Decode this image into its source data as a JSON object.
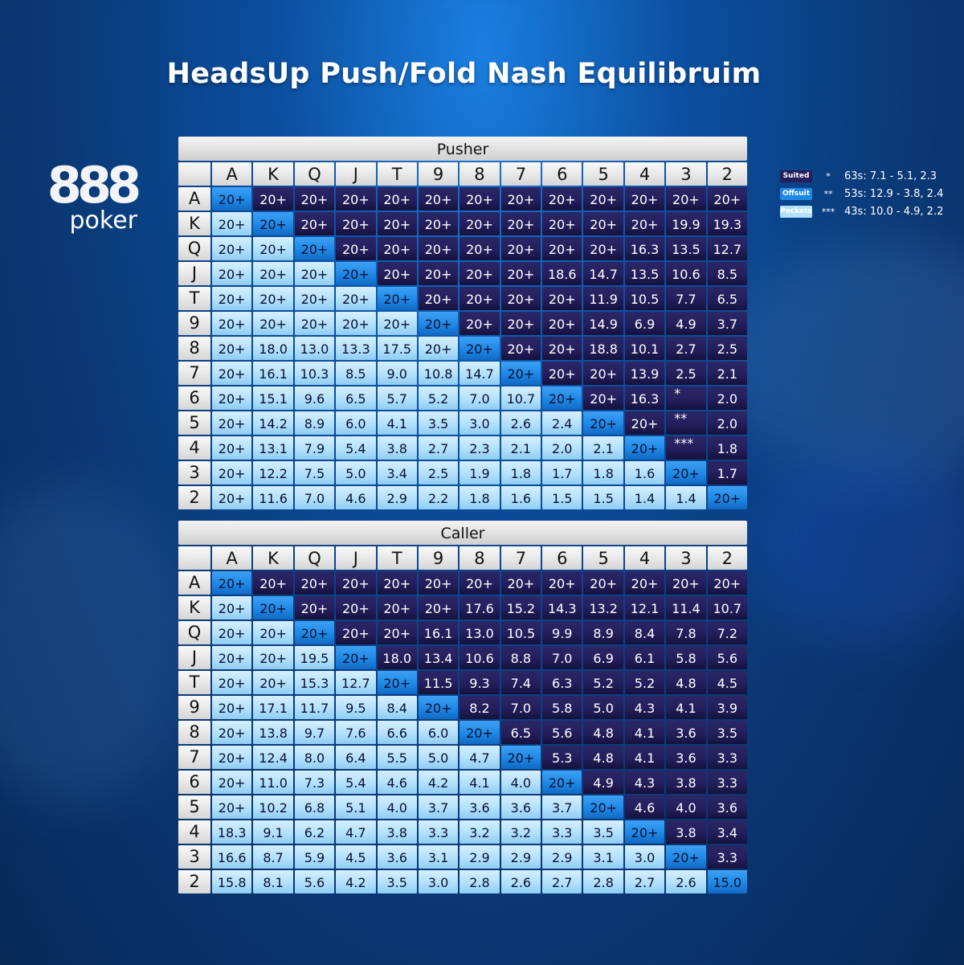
{
  "title": "HeadsUp Push/Fold Nash Equilibruim",
  "logo": {
    "number": "888",
    "word": "poker"
  },
  "colors": {
    "suited": "#241f5c",
    "offsuit": "#b3e0fb",
    "pockets": "#1e88e5"
  },
  "legend": {
    "chips": [
      {
        "label": "Suited",
        "color": "#241f5c"
      },
      {
        "label": "Offsuit",
        "color": "#1e88e5"
      },
      {
        "label": "Pockets",
        "color": "#b3e0fb"
      }
    ],
    "notes": [
      {
        "mark": "*",
        "text": "63s: 7.1 - 5.1, 2.3"
      },
      {
        "mark": "**",
        "text": "53s: 12.9 - 3.8, 2.4"
      },
      {
        "mark": "***",
        "text": "43s: 10.0 - 4.9, 2.2"
      }
    ]
  },
  "chart_data": [
    {
      "type": "table",
      "title": "Pusher",
      "columns": [
        "A",
        "K",
        "Q",
        "J",
        "T",
        "9",
        "8",
        "7",
        "6",
        "5",
        "4",
        "3",
        "2"
      ],
      "rows": [
        {
          "label": "A",
          "values": [
            "20+",
            "20+",
            "20+",
            "20+",
            "20+",
            "20+",
            "20+",
            "20+",
            "20+",
            "20+",
            "20+",
            "20+",
            "20+"
          ]
        },
        {
          "label": "K",
          "values": [
            "20+",
            "20+",
            "20+",
            "20+",
            "20+",
            "20+",
            "20+",
            "20+",
            "20+",
            "20+",
            "20+",
            "19.9",
            "19.3"
          ]
        },
        {
          "label": "Q",
          "values": [
            "20+",
            "20+",
            "20+",
            "20+",
            "20+",
            "20+",
            "20+",
            "20+",
            "20+",
            "20+",
            "16.3",
            "13.5",
            "12.7"
          ]
        },
        {
          "label": "J",
          "values": [
            "20+",
            "20+",
            "20+",
            "20+",
            "20+",
            "20+",
            "20+",
            "20+",
            "18.6",
            "14.7",
            "13.5",
            "10.6",
            "8.5"
          ]
        },
        {
          "label": "T",
          "values": [
            "20+",
            "20+",
            "20+",
            "20+",
            "20+",
            "20+",
            "20+",
            "20+",
            "20+",
            "11.9",
            "10.5",
            "7.7",
            "6.5"
          ]
        },
        {
          "label": "9",
          "values": [
            "20+",
            "20+",
            "20+",
            "20+",
            "20+",
            "20+",
            "20+",
            "20+",
            "20+",
            "14.9",
            "6.9",
            "4.9",
            "3.7"
          ]
        },
        {
          "label": "8",
          "values": [
            "20+",
            "18.0",
            "13.0",
            "13.3",
            "17.5",
            "20+",
            "20+",
            "20+",
            "20+",
            "18.8",
            "10.1",
            "2.7",
            "2.5"
          ]
        },
        {
          "label": "7",
          "values": [
            "20+",
            "16.1",
            "10.3",
            "8.5",
            "9.0",
            "10.8",
            "14.7",
            "20+",
            "20+",
            "20+",
            "13.9",
            "2.5",
            "2.1"
          ]
        },
        {
          "label": "6",
          "values": [
            "20+",
            "15.1",
            "9.6",
            "6.5",
            "5.7",
            "5.2",
            "7.0",
            "10.7",
            "20+",
            "20+",
            "16.3",
            "*",
            "2.0"
          ]
        },
        {
          "label": "5",
          "values": [
            "20+",
            "14.2",
            "8.9",
            "6.0",
            "4.1",
            "3.5",
            "3.0",
            "2.6",
            "2.4",
            "20+",
            "20+",
            "**",
            "2.0"
          ]
        },
        {
          "label": "4",
          "values": [
            "20+",
            "13.1",
            "7.9",
            "5.4",
            "3.8",
            "2.7",
            "2.3",
            "2.1",
            "2.0",
            "2.1",
            "20+",
            "***",
            "1.8"
          ]
        },
        {
          "label": "3",
          "values": [
            "20+",
            "12.2",
            "7.5",
            "5.0",
            "3.4",
            "2.5",
            "1.9",
            "1.8",
            "1.7",
            "1.8",
            "1.6",
            "20+",
            "1.7"
          ]
        },
        {
          "label": "2",
          "values": [
            "20+",
            "11.6",
            "7.0",
            "4.6",
            "2.9",
            "2.2",
            "1.8",
            "1.6",
            "1.5",
            "1.5",
            "1.4",
            "1.4",
            "20+"
          ]
        }
      ]
    },
    {
      "type": "table",
      "title": "Caller",
      "columns": [
        "A",
        "K",
        "Q",
        "J",
        "T",
        "9",
        "8",
        "7",
        "6",
        "5",
        "4",
        "3",
        "2"
      ],
      "rows": [
        {
          "label": "A",
          "values": [
            "20+",
            "20+",
            "20+",
            "20+",
            "20+",
            "20+",
            "20+",
            "20+",
            "20+",
            "20+",
            "20+",
            "20+",
            "20+"
          ]
        },
        {
          "label": "K",
          "values": [
            "20+",
            "20+",
            "20+",
            "20+",
            "20+",
            "20+",
            "17.6",
            "15.2",
            "14.3",
            "13.2",
            "12.1",
            "11.4",
            "10.7"
          ]
        },
        {
          "label": "Q",
          "values": [
            "20+",
            "20+",
            "20+",
            "20+",
            "20+",
            "16.1",
            "13.0",
            "10.5",
            "9.9",
            "8.9",
            "8.4",
            "7.8",
            "7.2"
          ]
        },
        {
          "label": "J",
          "values": [
            "20+",
            "20+",
            "19.5",
            "20+",
            "18.0",
            "13.4",
            "10.6",
            "8.8",
            "7.0",
            "6.9",
            "6.1",
            "5.8",
            "5.6"
          ]
        },
        {
          "label": "T",
          "values": [
            "20+",
            "20+",
            "15.3",
            "12.7",
            "20+",
            "11.5",
            "9.3",
            "7.4",
            "6.3",
            "5.2",
            "5.2",
            "4.8",
            "4.5"
          ]
        },
        {
          "label": "9",
          "values": [
            "20+",
            "17.1",
            "11.7",
            "9.5",
            "8.4",
            "20+",
            "8.2",
            "7.0",
            "5.8",
            "5.0",
            "4.3",
            "4.1",
            "3.9"
          ]
        },
        {
          "label": "8",
          "values": [
            "20+",
            "13.8",
            "9.7",
            "7.6",
            "6.6",
            "6.0",
            "20+",
            "6.5",
            "5.6",
            "4.8",
            "4.1",
            "3.6",
            "3.5"
          ]
        },
        {
          "label": "7",
          "values": [
            "20+",
            "12.4",
            "8.0",
            "6.4",
            "5.5",
            "5.0",
            "4.7",
            "20+",
            "5.3",
            "4.8",
            "4.1",
            "3.6",
            "3.3"
          ]
        },
        {
          "label": "6",
          "values": [
            "20+",
            "11.0",
            "7.3",
            "5.4",
            "4.6",
            "4.2",
            "4.1",
            "4.0",
            "20+",
            "4.9",
            "4.3",
            "3.8",
            "3.3"
          ]
        },
        {
          "label": "5",
          "values": [
            "20+",
            "10.2",
            "6.8",
            "5.1",
            "4.0",
            "3.7",
            "3.6",
            "3.6",
            "3.7",
            "20+",
            "4.6",
            "4.0",
            "3.6"
          ]
        },
        {
          "label": "4",
          "values": [
            "18.3",
            "9.1",
            "6.2",
            "4.7",
            "3.8",
            "3.3",
            "3.2",
            "3.2",
            "3.3",
            "3.5",
            "20+",
            "3.8",
            "3.4"
          ]
        },
        {
          "label": "3",
          "values": [
            "16.6",
            "8.7",
            "5.9",
            "4.5",
            "3.6",
            "3.1",
            "2.9",
            "2.9",
            "2.9",
            "3.1",
            "3.0",
            "20+",
            "3.3"
          ]
        },
        {
          "label": "2",
          "values": [
            "15.8",
            "8.1",
            "5.6",
            "4.2",
            "3.5",
            "3.0",
            "2.8",
            "2.6",
            "2.7",
            "2.8",
            "2.7",
            "2.6",
            "15.0"
          ]
        }
      ]
    }
  ]
}
